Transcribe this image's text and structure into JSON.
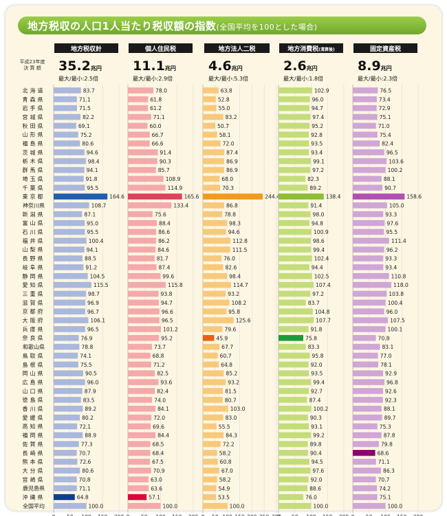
{
  "title": "地方税収の人口1人当たり税収額の指数",
  "title_note": "(全国平均を100とした場合)",
  "row_header": [
    "平成23年度",
    "決 算 額"
  ],
  "prefectures": [
    "北海道",
    "青森県",
    "岩手県",
    "宮城県",
    "秋田県",
    "山形県",
    "福島県",
    "茨城県",
    "栃木県",
    "群馬県",
    "埼玉県",
    "千葉県",
    "東京都",
    "神奈川県",
    "新潟県",
    "富山県",
    "石川県",
    "福井県",
    "山梨県",
    "長野県",
    "岐阜県",
    "静岡県",
    "愛知県",
    "三重県",
    "滋賀県",
    "京都府",
    "大阪府",
    "兵庫県",
    "奈良県",
    "和歌山県",
    "鳥取県",
    "島根県",
    "岡山県",
    "広島県",
    "山口県",
    "徳島県",
    "香川県",
    "愛媛県",
    "高知県",
    "福岡県",
    "佐賀県",
    "長崎県",
    "熊本県",
    "大分県",
    "宮崎県",
    "鹿児島県",
    "沖縄県",
    "全国平均"
  ],
  "colors": {
    "card_bg": "#fdf6e3",
    "header_bg": "#1a1a1a",
    "title_green": "#7ab535",
    "colA": {
      "bar": "#a9b8dc",
      "highlight": "#1f5fb0",
      "low": "#0b3f91"
    },
    "colB": {
      "bar": "#f4a9aa",
      "highlight": "#e0405a",
      "low": "#e0063a"
    },
    "colC": {
      "bar": "#f8c97a",
      "highlight": "#f29a1f",
      "low": "#ea6010"
    },
    "colD": {
      "bar": "#c3dd7a",
      "highlight": "#8cbd32",
      "low": "#1f9a3a"
    },
    "colE": {
      "bar": "#cfa6d6",
      "highlight": "#b04fb6",
      "low": "#8a0070"
    }
  },
  "chart_data": {
    "type": "bar",
    "orientation": "horizontal",
    "categories": [
      "北海道",
      "青森県",
      "岩手県",
      "宮城県",
      "秋田県",
      "山形県",
      "福島県",
      "茨城県",
      "栃木県",
      "群馬県",
      "埼玉県",
      "千葉県",
      "東京都",
      "神奈川県",
      "新潟県",
      "富山県",
      "石川県",
      "福井県",
      "山梨県",
      "長野県",
      "岐阜県",
      "静岡県",
      "愛知県",
      "三重県",
      "滋賀県",
      "京都府",
      "大阪府",
      "兵庫県",
      "奈良県",
      "和歌山県",
      "鳥取県",
      "島根県",
      "岡山県",
      "広島県",
      "山口県",
      "徳島県",
      "香川県",
      "愛媛県",
      "高知県",
      "福岡県",
      "佐賀県",
      "長崎県",
      "熊本県",
      "大分県",
      "宮崎県",
      "鹿児島県",
      "沖縄県",
      "全国平均"
    ],
    "series": [
      {
        "name": "地方税収計",
        "total": "35.2",
        "unit": "兆円",
        "ratio": "最大/最小:2.5倍",
        "xlim": [
          0,
          200
        ],
        "ticks": [
          0,
          50,
          100,
          150,
          200
        ],
        "max_index": 12,
        "min_index": 46,
        "values": [
          83.7,
          71.1,
          71.5,
          82.2,
          69.1,
          75.2,
          80.6,
          94.6,
          98.4,
          94.1,
          91.8,
          95.5,
          164.6,
          108.7,
          87.1,
          95.0,
          95.5,
          100.4,
          94.1,
          88.5,
          91.2,
          104.5,
          115.5,
          98.7,
          96.9,
          96.7,
          106.1,
          96.5,
          76.9,
          78.8,
          74.1,
          75.5,
          90.5,
          96.0,
          87.9,
          83.5,
          89.2,
          80.2,
          72.1,
          88.9,
          77.3,
          70.7,
          72.6,
          80.6,
          70.8,
          71.1,
          64.8,
          100.0
        ]
      },
      {
        "name": "個人住民税",
        "total": "11.1",
        "unit": "兆円",
        "ratio": "最大/最小:2.9倍",
        "xlim": [
          0,
          200
        ],
        "ticks": [
          0,
          50,
          100,
          150,
          200
        ],
        "max_index": 12,
        "min_index": 46,
        "values": [
          78.0,
          61.8,
          61.2,
          71.1,
          60.0,
          66.7,
          66.6,
          91.4,
          90.3,
          85.7,
          108.9,
          114.9,
          165.6,
          133.4,
          75.6,
          88.4,
          86.6,
          86.2,
          84.6,
          81.7,
          87.4,
          99.6,
          115.8,
          93.8,
          94.7,
          96.6,
          96.5,
          101.2,
          95.2,
          73.7,
          68.8,
          71.2,
          82.5,
          93.6,
          82.4,
          74.0,
          84.1,
          72.0,
          69.6,
          84.4,
          68.5,
          68.4,
          67.5,
          70.9,
          63.0,
          63.6,
          57.1,
          100.0
        ]
      },
      {
        "name": "地方法人二税",
        "total": "4.6",
        "unit": "兆円",
        "ratio": "最大/最小:5.3倍",
        "xlim": [
          0,
          300
        ],
        "ticks": [
          0,
          50,
          100,
          150,
          200,
          250,
          300
        ],
        "max_index": 12,
        "min_index": 28,
        "values": [
          63.8,
          52.8,
          55.0,
          83.2,
          50.7,
          58.1,
          72.0,
          87.4,
          86.9,
          86.9,
          68.0,
          70.3,
          244.4,
          86.8,
          78.8,
          98.3,
          94.6,
          112.8,
          111.5,
          76.0,
          82.6,
          98.4,
          114.7,
          93.2,
          108.2,
          95.8,
          125.6,
          79.6,
          45.9,
          67.7,
          60.7,
          64.8,
          85.2,
          93.2,
          81.5,
          80.7,
          103.0,
          83.0,
          55.5,
          84.3,
          72.2,
          58.2,
          60.8,
          67.0,
          58.2,
          54.9,
          53.5,
          100.0
        ]
      },
      {
        "name": "地方消費税",
        "name_note": "(清算後)",
        "total": "2.6",
        "unit": "兆円",
        "ratio": "最大/最小:1.8倍",
        "xlim": [
          0,
          200
        ],
        "ticks": [
          0,
          50,
          100,
          150,
          200
        ],
        "max_index": 12,
        "min_index": 28,
        "values": [
          102.9,
          96.0,
          94.7,
          97.4,
          95.2,
          92.8,
          93.5,
          93.4,
          99.1,
          97.2,
          82.3,
          89.2,
          138.4,
          91.4,
          98.0,
          94.8,
          100.9,
          98.6,
          99.4,
          102.4,
          94.4,
          102.5,
          107.4,
          97.2,
          83.7,
          104.8,
          107.7,
          91.8,
          75.8,
          83.3,
          95.8,
          92.0,
          93.5,
          99.4,
          92.7,
          87.4,
          100.2,
          90.3,
          93.1,
          99.2,
          89.8,
          90.4,
          94.5,
          97.6,
          92.0,
          88.6,
          76.0,
          100.0
        ]
      },
      {
        "name": "固定資産税",
        "total": "8.9",
        "unit": "兆円",
        "ratio": "最大/最小:2.3倍",
        "xlim": [
          0,
          200
        ],
        "ticks": [
          0,
          50,
          100,
          150,
          200
        ],
        "max_index": 12,
        "min_index": 41,
        "values": [
          76.5,
          73.4,
          72.9,
          75.1,
          71.0,
          75.4,
          82.4,
          96.5,
          103.6,
          100.2,
          88.1,
          90.7,
          158.6,
          105.0,
          93.3,
          97.6,
          95.5,
          111.4,
          96.2,
          93.3,
          93.4,
          110.8,
          118.0,
          103.8,
          100.4,
          96.0,
          107.5,
          100.1,
          70.8,
          83.1,
          77.0,
          78.1,
          92.9,
          96.8,
          92.6,
          92.3,
          88.1,
          89.7,
          75.3,
          87.8,
          79.8,
          68.6,
          71.1,
          86.3,
          70.7,
          74.2,
          75.1,
          100.0
        ]
      }
    ]
  }
}
